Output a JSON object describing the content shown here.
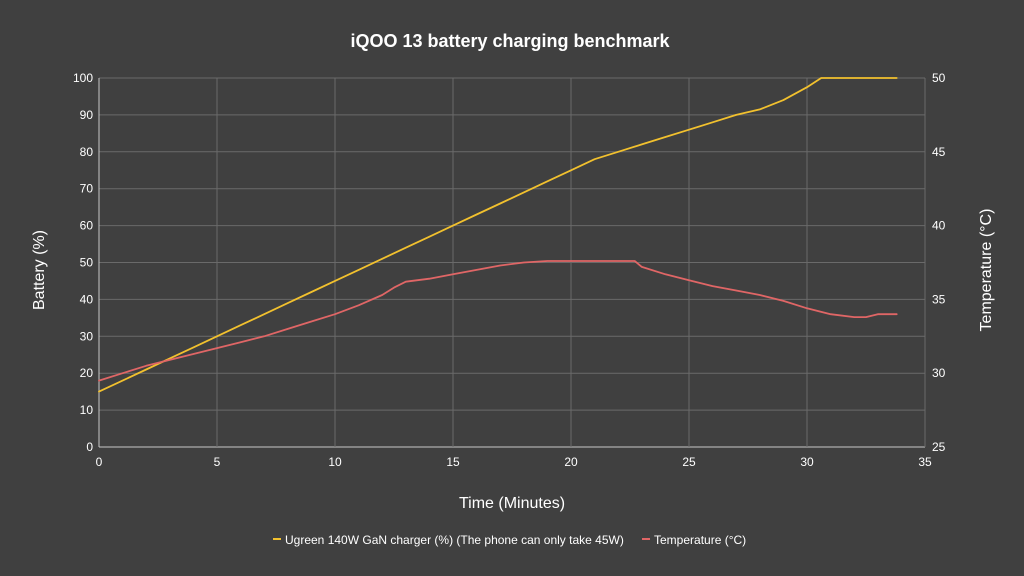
{
  "chart_data": {
    "type": "line",
    "title": "iQOO 13 battery charging benchmark",
    "xlabel": "Time (Minutes)",
    "ylabel": "Battery (%)",
    "y2label": "Temperature (°C)",
    "xlim": [
      0,
      35
    ],
    "ylim": [
      0,
      100
    ],
    "y2lim": [
      25,
      50
    ],
    "xticks": [
      0,
      5,
      10,
      15,
      20,
      25,
      30,
      35
    ],
    "yticks": [
      0,
      10,
      20,
      30,
      40,
      50,
      60,
      70,
      80,
      90,
      100
    ],
    "y2ticks": [
      25,
      30,
      35,
      40,
      45,
      50
    ],
    "grid": true,
    "legend_position": "bottom",
    "series": [
      {
        "name": "Ugreen 140W GaN charger (%) (The phone can only take 45W)",
        "axis": "left",
        "color": "#f2c12e",
        "x": [
          0,
          1,
          2,
          3,
          4,
          5,
          6,
          7,
          8,
          9,
          10,
          11,
          12,
          13,
          14,
          15,
          16,
          17,
          18,
          19,
          20,
          21,
          22,
          23,
          24,
          25,
          26,
          27,
          28,
          29,
          30,
          30.6,
          31,
          32,
          33,
          33.8
        ],
        "y": [
          15,
          18,
          21,
          24,
          27,
          30,
          33,
          36,
          39,
          42,
          45,
          48,
          51,
          54,
          57,
          60,
          63,
          66,
          69,
          72,
          75,
          78,
          80,
          82,
          84,
          86,
          88,
          90,
          91.5,
          94,
          97.5,
          100,
          100,
          100,
          100,
          100
        ]
      },
      {
        "name": "Temperature (°C)",
        "axis": "right",
        "color": "#e06666",
        "x": [
          0,
          1,
          2,
          3,
          4,
          5,
          6,
          7,
          8,
          9,
          10,
          11,
          12,
          12.5,
          13,
          14,
          15,
          16,
          17,
          18,
          19,
          20,
          21,
          22,
          22.7,
          23,
          24,
          25,
          26,
          27,
          28,
          29,
          30,
          31,
          32,
          32.5,
          33,
          33.8
        ],
        "y": [
          29.5,
          30,
          30.5,
          30.9,
          31.3,
          31.7,
          32.1,
          32.5,
          33,
          33.5,
          34,
          34.6,
          35.3,
          35.8,
          36.2,
          36.4,
          36.7,
          37,
          37.3,
          37.5,
          37.6,
          37.6,
          37.6,
          37.6,
          37.6,
          37.2,
          36.7,
          36.3,
          35.9,
          35.6,
          35.3,
          34.9,
          34.4,
          34,
          33.8,
          33.8,
          34,
          34
        ]
      }
    ]
  }
}
